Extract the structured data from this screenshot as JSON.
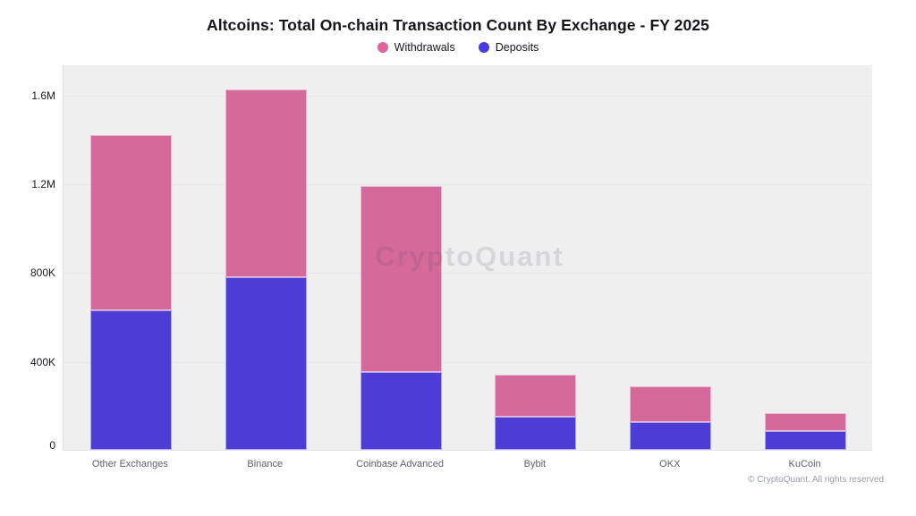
{
  "title": "Altcoins: Total On-chain Transaction Count By Exchange - FY 2025",
  "watermark": "CryptoQuant",
  "footer": "© CryptoQuant. All rights reserved",
  "legend": [
    {
      "label": "Withdrawals",
      "color": "#e0659e"
    },
    {
      "label": "Deposits",
      "color": "#4a3be0"
    }
  ],
  "colors": {
    "withdrawals_bar": "#d4699a",
    "deposits_bar": "#4e3cd6",
    "plot_background": "#efefef",
    "gridline": "#e6e6ea"
  },
  "chart_data": {
    "type": "bar",
    "stacked": true,
    "title": "Altcoins: Total On-chain Transaction Count By Exchange - FY 2025",
    "categories": [
      "Other Exchanges",
      "Binance",
      "Coinbase Advanced",
      "Bybit",
      "OKX",
      "KuCoin"
    ],
    "series": [
      {
        "name": "Deposits",
        "color": "#4e3cd6",
        "values": [
          630000,
          780000,
          350000,
          150000,
          125000,
          85000
        ]
      },
      {
        "name": "Withdrawals",
        "color": "#d4699a",
        "values": [
          790000,
          845000,
          840000,
          190000,
          160000,
          80000
        ]
      }
    ],
    "totals": [
      1420000,
      1625000,
      1190000,
      340000,
      285000,
      165000
    ],
    "xlabel": "",
    "ylabel": "",
    "y_ticks": [
      {
        "label": "0",
        "value": 0
      },
      {
        "label": "400K",
        "value": 400000
      },
      {
        "label": "800K",
        "value": 800000
      },
      {
        "label": "1.2M",
        "value": 1200000
      },
      {
        "label": "1.6M",
        "value": 1600000
      }
    ],
    "ylim": [
      0,
      1737000
    ],
    "grid": true,
    "legend_position": "top"
  }
}
